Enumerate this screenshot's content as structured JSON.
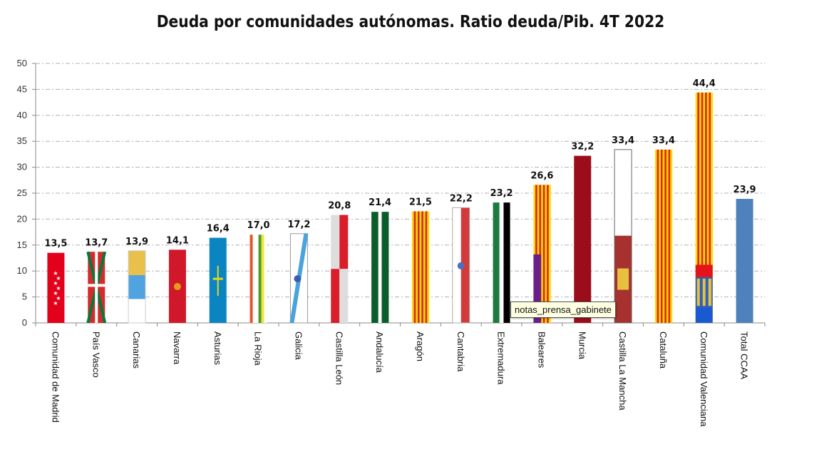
{
  "chart_data": {
    "type": "bar",
    "title": "Deuda por comunidades autónomas. Ratio deuda/Pib. 4T 2022",
    "xlabel": "",
    "ylabel": "",
    "ylim": [
      0,
      50
    ],
    "yticks": [
      0,
      5,
      10,
      15,
      20,
      25,
      30,
      35,
      40,
      45,
      50
    ],
    "grid": true,
    "categories": [
      "Comunidad de Madrid",
      "País Vasco",
      "Canarias",
      "Navarra",
      "Asturias",
      "La Rioja",
      "Galicia",
      "Castilla León",
      "Andalucía",
      "Aragón",
      "Cantabria",
      "Extremadura",
      "Baleares",
      "Murcia",
      "Castilla La Mancha",
      "Cataluña",
      "Comunidad Valenciana",
      "Total CCAA"
    ],
    "values": [
      13.5,
      13.7,
      13.9,
      14.1,
      16.4,
      17.0,
      17.2,
      20.8,
      21.4,
      21.5,
      22.2,
      23.2,
      26.6,
      32.2,
      33.4,
      33.4,
      44.4,
      23.9
    ],
    "data_labels": [
      "13,5",
      "13,7",
      "13,9",
      "14,1",
      "16,4",
      "17,0",
      "17,2",
      "20,8",
      "21,4",
      "21,5",
      "22,2",
      "23,2",
      "26,6",
      "32,2",
      "33,4",
      "33,4",
      "44,4",
      "23,9"
    ],
    "bar_style": "regional flags",
    "total_color": "#4f81bd"
  },
  "tooltip": "notas_prensa_gabinete"
}
